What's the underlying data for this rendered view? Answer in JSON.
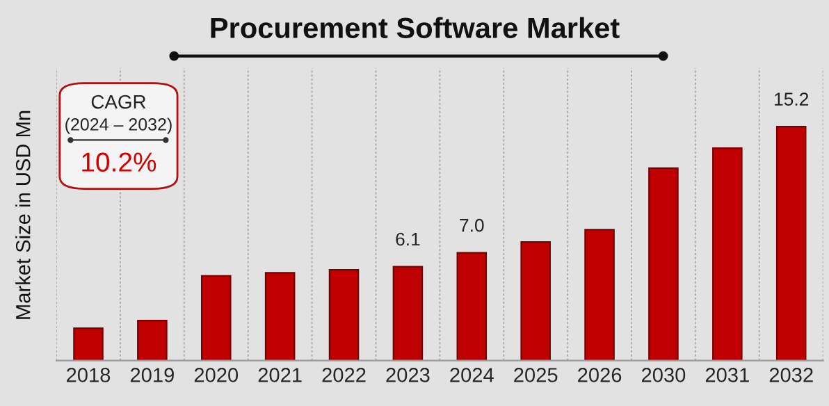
{
  "chart_data": {
    "type": "bar",
    "title": "Procurement Software Market",
    "ylabel": "Market Size in USD Mn",
    "categories": [
      "2018",
      "2019",
      "2020",
      "2021",
      "2022",
      "2023",
      "2024",
      "2025",
      "2026",
      "2030",
      "2031",
      "2032"
    ],
    "values": [
      2.1,
      2.6,
      5.5,
      5.7,
      5.9,
      6.1,
      7.0,
      7.7,
      8.5,
      12.5,
      13.8,
      15.2
    ],
    "value_labels": [
      null,
      null,
      null,
      null,
      null,
      "6.1",
      "7.0",
      null,
      null,
      null,
      null,
      "15.2"
    ],
    "color": "#c00000",
    "grid": "x",
    "legend": false,
    "annotations": [
      "CAGR",
      "(2024 – 2032)",
      "10.2%"
    ]
  }
}
